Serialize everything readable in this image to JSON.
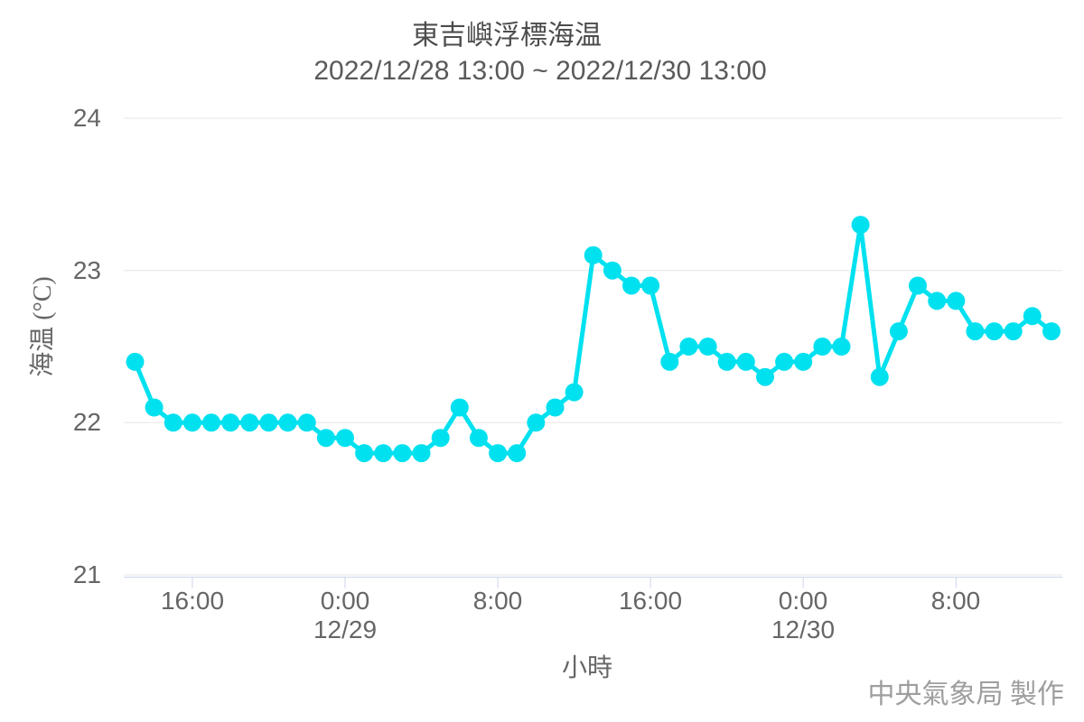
{
  "chart_data": {
    "type": "line",
    "title": "東吉嶼浮標海温",
    "subtitle": "2022/12/28 13:00 ~ 2022/12/30 13:00",
    "xlabel": "小時",
    "ylabel": "海温 (°C)",
    "ylim": [
      21,
      24
    ],
    "y_ticks": [
      24,
      23,
      22,
      21
    ],
    "x_start": "2022/12/28 13:00",
    "x_end": "2022/12/30 13:00",
    "x_step_hours": 1,
    "x_ticks": [
      {
        "hour_offset": 3,
        "label": "16:00"
      },
      {
        "hour_offset": 11,
        "label": "0:00",
        "date": "12/29"
      },
      {
        "hour_offset": 19,
        "label": "8:00"
      },
      {
        "hour_offset": 27,
        "label": "16:00"
      },
      {
        "hour_offset": 35,
        "label": "0:00",
        "date": "12/30"
      },
      {
        "hour_offset": 43,
        "label": "8:00"
      }
    ],
    "grid": "horizontal-only",
    "legend": "none",
    "series": [
      {
        "name": "海温",
        "values": [
          22.4,
          22.1,
          22.0,
          22.0,
          22.0,
          22.0,
          22.0,
          22.0,
          22.0,
          22.0,
          21.9,
          21.9,
          21.8,
          21.8,
          21.8,
          21.8,
          21.9,
          22.1,
          21.9,
          21.8,
          21.8,
          22.0,
          22.1,
          22.2,
          23.1,
          23.0,
          22.9,
          22.9,
          22.4,
          22.5,
          22.5,
          22.4,
          22.4,
          22.3,
          22.4,
          22.4,
          22.5,
          22.5,
          23.3,
          22.3,
          22.6,
          22.9,
          22.8,
          22.8,
          22.6,
          22.6,
          22.6,
          22.7,
          22.6
        ]
      }
    ]
  },
  "footer": {
    "credit": "中央氣象局 製作"
  },
  "colors": {
    "line": "#00e1f0",
    "grid": "#e6e6e6",
    "axis_line": "#ccd6eb",
    "title_text": "#4c4c4c",
    "subtitle_text": "#5a5a5a",
    "tick_text": "#666666",
    "credit_text": "#9e9e9e"
  }
}
